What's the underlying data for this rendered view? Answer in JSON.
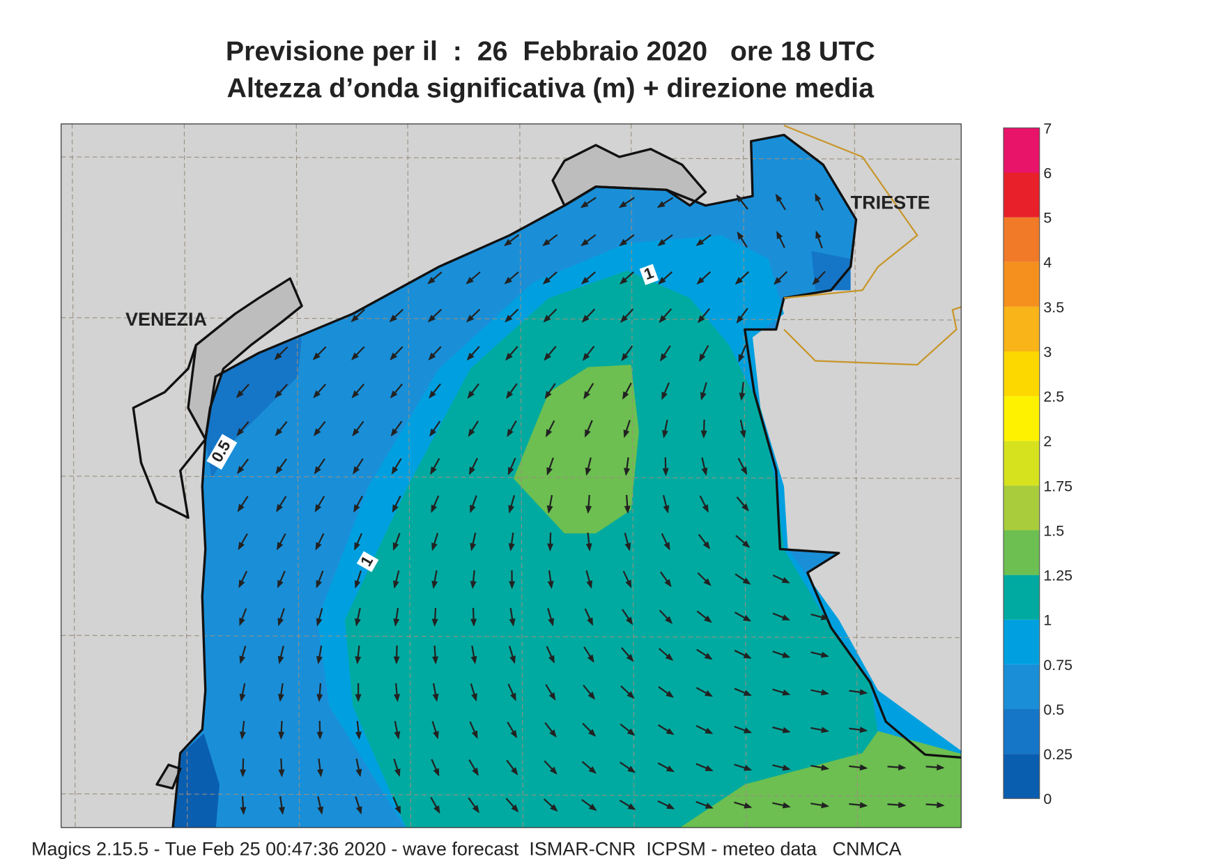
{
  "header": {
    "title": "Previsione per il  :  26  Febbraio 2020   ore 18 UTC",
    "subtitle": "Altezza d’onda significativa (m) + direzione media"
  },
  "map": {
    "places": [
      {
        "label": "VENEZIA"
      },
      {
        "label": "TRIESTE"
      }
    ],
    "contour_labels": [
      "1",
      "0.5",
      "1"
    ]
  },
  "legend": {
    "labels": [
      "0",
      "0.25",
      "0.5",
      "0.75",
      "1",
      "1.25",
      "1.5",
      "1.75",
      "2",
      "2.5",
      "3",
      "3.5",
      "4",
      "5",
      "6",
      "7"
    ],
    "colors": [
      "#0a5eb0",
      "#1576c8",
      "#1a8fd8",
      "#00a0e0",
      "#00aaa0",
      "#6cbf50",
      "#a8cc3c",
      "#d6e21e",
      "#fff200",
      "#fcd800",
      "#f8b418",
      "#f5901e",
      "#f07a28",
      "#e8202a",
      "#e8146a"
    ]
  },
  "footer": "Magics 2.15.5 - Tue Feb 25 00:47:36 2020 - wave forecast  ISMAR-CNR  ICPSM - meteo data   CNMCA"
}
